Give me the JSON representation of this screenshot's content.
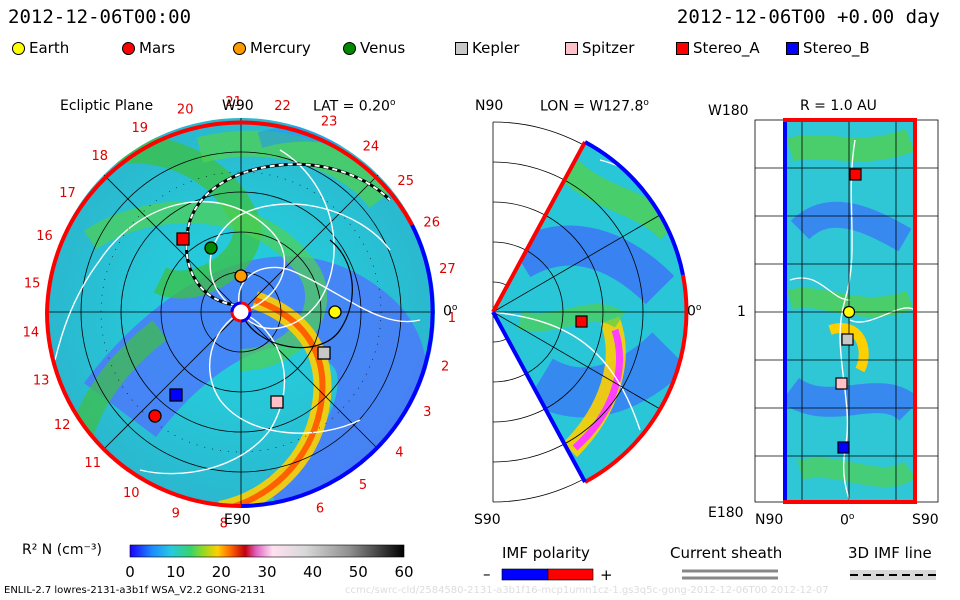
{
  "header": {
    "datetime": "2012-12-06T00:00",
    "run_time": "2012-12-06T00 +0.00 day"
  },
  "legend": [
    {
      "name": "Earth",
      "color": "#ffff00",
      "shape": "circle"
    },
    {
      "name": "Mars",
      "color": "#ff0000",
      "shape": "circle"
    },
    {
      "name": "Mercury",
      "color": "#ff9900",
      "shape": "circle"
    },
    {
      "name": "Venus",
      "color": "#008800",
      "shape": "circle"
    },
    {
      "name": "Kepler",
      "color": "#c8c8c8",
      "shape": "square"
    },
    {
      "name": "Spitzer",
      "color": "#ffc0c8",
      "shape": "square"
    },
    {
      "name": "Stereo_A",
      "color": "#ff0000",
      "shape": "square"
    },
    {
      "name": "Stereo_B",
      "color": "#0000ff",
      "shape": "square"
    }
  ],
  "panels": {
    "ecliptic": {
      "title": "Ecliptic Plane",
      "top_label": "W90",
      "bottom_label": "E90",
      "right_label": "0",
      "lat": "LAT = 0.20"
    },
    "meridional": {
      "top_label": "N90",
      "bottom_label": "S90",
      "right_label": "0",
      "lon": "LON = W127.8"
    },
    "radial": {
      "radius": "R = 1.0 AU",
      "top_left": "W180",
      "mid_left": "1",
      "bottom_left": "E180",
      "x_left": "N90",
      "x_mid": "0",
      "x_right": "S90"
    }
  },
  "carrington_ticks": [
    "6",
    "5",
    "4",
    "3",
    "2",
    "1",
    "27",
    "26",
    "25",
    "24",
    "23",
    "22",
    "21",
    "20",
    "19",
    "18",
    "17",
    "16",
    "15",
    "14",
    "13",
    "12",
    "11",
    "10",
    "9",
    "8"
  ],
  "chart_data": {
    "type": "heatmap",
    "quantity": "R² N (cm⁻³)",
    "colorbar": {
      "min": 0,
      "max": 60,
      "ticks": [
        0,
        10,
        20,
        30,
        40,
        50,
        60
      ]
    },
    "bodies": [
      {
        "name": "Earth",
        "panel": "ecliptic"
      },
      {
        "name": "Mars",
        "panel": "ecliptic"
      },
      {
        "name": "Mercury",
        "panel": "ecliptic"
      },
      {
        "name": "Venus",
        "panel": "ecliptic"
      },
      {
        "name": "Kepler",
        "panel": "ecliptic"
      },
      {
        "name": "Spitzer",
        "panel": "ecliptic"
      },
      {
        "name": "Stereo_A",
        "panel": "ecliptic"
      },
      {
        "name": "Stereo_B",
        "panel": "ecliptic"
      }
    ]
  },
  "footer": {
    "model": "ENLIL-2.7 lowres-2131-a3b1f WSA_V2.2 GONG-2131",
    "imf_polarity": "IMF polarity",
    "current_sheath": "Current sheath",
    "imf_line": "3D IMF line",
    "minus": "–",
    "plus": "+",
    "watermark": "ccmc/swrc-cld/2584580-2131-a3b1f16-mcp1umn1cz-1.gs3q5c-gong-2012-12-06T00   2012-12-07"
  }
}
